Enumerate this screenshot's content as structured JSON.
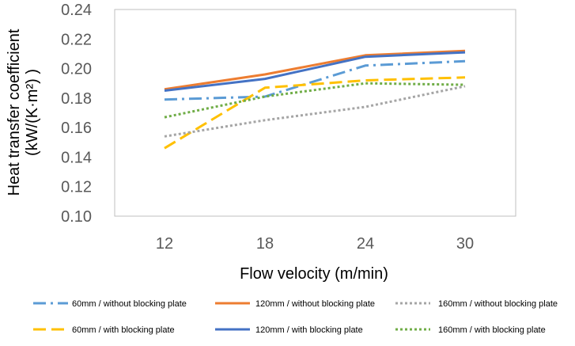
{
  "chart_data": {
    "type": "line",
    "xlabel": "Flow velocity (m/min)",
    "ylabel_line1": "Heat transfer coefficient",
    "ylabel_line2": "(kW/(K·m²) )",
    "categories": [
      "12",
      "18",
      "24",
      "30"
    ],
    "ylim": [
      0.1,
      0.24
    ],
    "yticks": [
      "0.10",
      "0.12",
      "0.14",
      "0.16",
      "0.18",
      "0.20",
      "0.22",
      "0.24"
    ],
    "grid": false,
    "legend_position": "bottom",
    "series": [
      {
        "name": "60mm / without blocking plate",
        "color": "#5B9BD5",
        "dash": "long-dash-dot",
        "values": [
          0.179,
          0.181,
          0.202,
          0.205
        ]
      },
      {
        "name": "60mm / with blocking plate",
        "color": "#FFC000",
        "dash": "long-dash",
        "values": [
          0.146,
          0.187,
          0.192,
          0.194
        ]
      },
      {
        "name": "120mm / without blocking plate",
        "color": "#ED7D31",
        "dash": "solid",
        "values": [
          0.186,
          0.196,
          0.209,
          0.212
        ]
      },
      {
        "name": "120mm / with  blocking plate",
        "color": "#4472C4",
        "dash": "solid",
        "values": [
          0.185,
          0.193,
          0.208,
          0.211
        ]
      },
      {
        "name": "160mm / without blocking plate",
        "color": "#A5A5A5",
        "dash": "dot",
        "values": [
          0.154,
          0.165,
          0.174,
          0.188
        ]
      },
      {
        "name": "160mm / with  blocking plate",
        "color": "#70AD47",
        "dash": "dot",
        "values": [
          0.167,
          0.181,
          0.19,
          0.189
        ]
      }
    ]
  }
}
